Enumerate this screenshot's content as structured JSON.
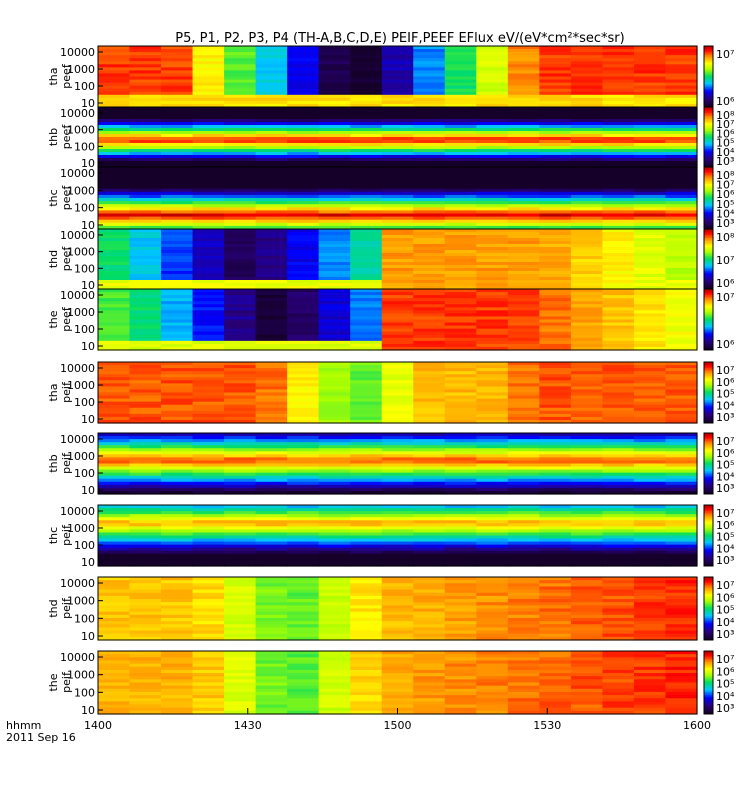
{
  "chart_data": {
    "type": "heatmap",
    "title": "P5, P1, P2, P3, P4 (TH-A,B,C,D,E) PEIF,PEEF EFlux eV/(eV*cm²*sec*sr)",
    "x_labels": [
      "1400",
      "1430",
      "1500",
      "1530",
      "1600"
    ],
    "x_footer": [
      "hhmm",
      "2011 Sep 16"
    ],
    "y_ticks": [
      "10",
      "100",
      "1000",
      "10000"
    ],
    "y_scale": "log",
    "x_range": [
      "1400",
      "1600"
    ],
    "colormap": "rainbow",
    "panels": [
      {
        "probe": "tha",
        "instrument": "peef",
        "pattern": "peef-a",
        "colorbar": [
          "10⁷",
          "10⁶"
        ]
      },
      {
        "probe": "thb",
        "instrument": "peef",
        "pattern": "peef-band",
        "colorbar": [
          "10⁸",
          "10⁷",
          "10⁶",
          "10⁵",
          "10⁴",
          "10³"
        ]
      },
      {
        "probe": "thc",
        "instrument": "peef",
        "pattern": "peef-band2",
        "colorbar": [
          "10⁸",
          "10⁷",
          "10⁶",
          "10⁵",
          "10⁴",
          "10³"
        ]
      },
      {
        "probe": "thd",
        "instrument": "peef",
        "pattern": "peef-d",
        "colorbar": [
          "10⁸",
          "10⁷",
          "10⁶"
        ]
      },
      {
        "probe": "the",
        "instrument": "peef",
        "pattern": "peef-e",
        "colorbar": [
          "10⁷",
          "10⁶"
        ]
      },
      {
        "probe": "tha",
        "instrument": "peif",
        "pattern": "peif-a",
        "colorbar": [
          "10⁷",
          "10⁶",
          "10⁵",
          "10⁴",
          "10³"
        ]
      },
      {
        "probe": "thb",
        "instrument": "peif",
        "pattern": "peif-band",
        "colorbar": [
          "10⁷",
          "10⁶",
          "10⁵",
          "10⁴",
          "10³"
        ]
      },
      {
        "probe": "thc",
        "instrument": "peif",
        "pattern": "peif-band2",
        "colorbar": [
          "10⁷",
          "10⁶",
          "10⁵",
          "10⁴",
          "10³"
        ]
      },
      {
        "probe": "thd",
        "instrument": "peif",
        "pattern": "peif-d",
        "colorbar": [
          "10⁷",
          "10⁶",
          "10⁵",
          "10⁴",
          "10³"
        ]
      },
      {
        "probe": "the",
        "instrument": "peif",
        "pattern": "peif-e",
        "colorbar": [
          "10⁷",
          "10⁶",
          "10⁵",
          "10⁴",
          "10³"
        ]
      }
    ]
  }
}
